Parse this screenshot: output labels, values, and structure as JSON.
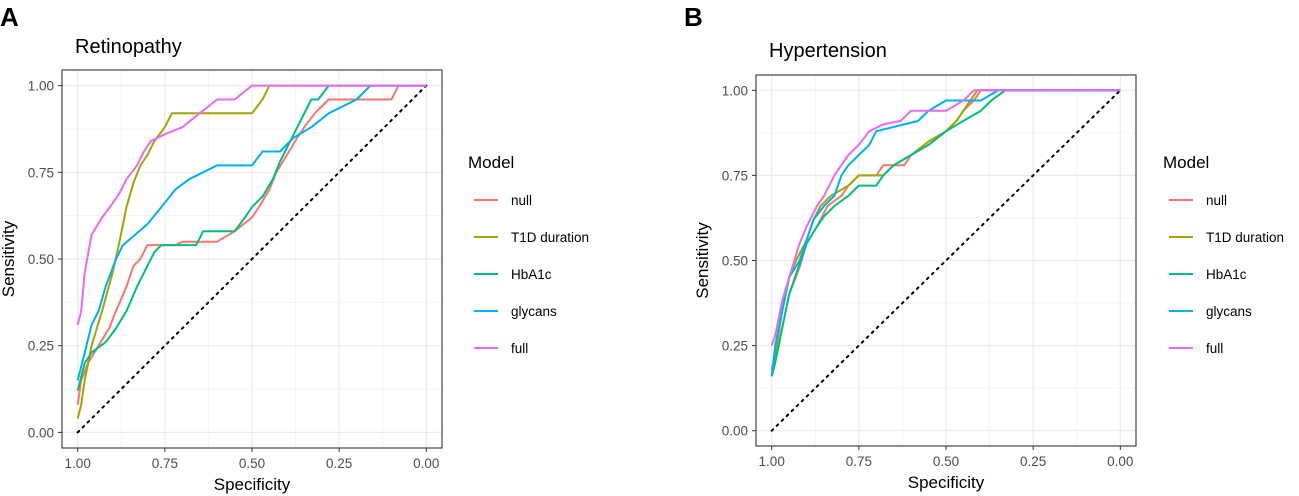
{
  "figure": {
    "panels": [
      {
        "label": "A",
        "title": "Retinopathy"
      },
      {
        "label": "B",
        "title": "Hypertension"
      }
    ]
  },
  "chart_data": [
    {
      "type": "line",
      "panel": "A",
      "title": "Retinopathy",
      "xlabel": "Specificity",
      "ylabel": "Sensitivity",
      "xlim": [
        1.0,
        0.0
      ],
      "ylim": [
        0.0,
        1.0
      ],
      "x_reversed": true,
      "grid": true,
      "xticks": [
        1.0,
        0.75,
        0.5,
        0.25,
        0.0
      ],
      "xtick_labels": [
        "1.00",
        "0.75",
        "0.50",
        "0.25",
        "0.00"
      ],
      "yticks": [
        0.0,
        0.25,
        0.5,
        0.75,
        1.0
      ],
      "ytick_labels": [
        "0.00",
        "0.25",
        "0.50",
        "0.75",
        "1.00"
      ],
      "legend": {
        "title": "Model",
        "position": "right"
      },
      "reference_line": {
        "style": "dotted",
        "color": "#000000",
        "from": [
          1.0,
          0.0
        ],
        "to": [
          0.0,
          1.0
        ]
      },
      "series": [
        {
          "name": "null",
          "color": "#F8766D",
          "points": [
            [
              1.0,
              0.08
            ],
            [
              0.99,
              0.15
            ],
            [
              0.97,
              0.2
            ],
            [
              0.94,
              0.25
            ],
            [
              0.91,
              0.3
            ],
            [
              0.89,
              0.35
            ],
            [
              0.86,
              0.42
            ],
            [
              0.84,
              0.48
            ],
            [
              0.82,
              0.5
            ],
            [
              0.8,
              0.54
            ],
            [
              0.72,
              0.54
            ],
            [
              0.7,
              0.55
            ],
            [
              0.6,
              0.55
            ],
            [
              0.55,
              0.58
            ],
            [
              0.5,
              0.62
            ],
            [
              0.48,
              0.65
            ],
            [
              0.45,
              0.7
            ],
            [
              0.43,
              0.75
            ],
            [
              0.4,
              0.8
            ],
            [
              0.37,
              0.85
            ],
            [
              0.35,
              0.88
            ],
            [
              0.32,
              0.92
            ],
            [
              0.28,
              0.96
            ],
            [
              0.1,
              0.96
            ],
            [
              0.08,
              1.0
            ],
            [
              0.0,
              1.0
            ]
          ]
        },
        {
          "name": "T1D duration",
          "color": "#A3A500",
          "points": [
            [
              1.0,
              0.04
            ],
            [
              0.99,
              0.08
            ],
            [
              0.98,
              0.15
            ],
            [
              0.96,
              0.25
            ],
            [
              0.93,
              0.35
            ],
            [
              0.9,
              0.46
            ],
            [
              0.88,
              0.55
            ],
            [
              0.86,
              0.65
            ],
            [
              0.84,
              0.72
            ],
            [
              0.82,
              0.77
            ],
            [
              0.8,
              0.8
            ],
            [
              0.78,
              0.84
            ],
            [
              0.75,
              0.88
            ],
            [
              0.73,
              0.92
            ],
            [
              0.62,
              0.92
            ],
            [
              0.6,
              0.92
            ],
            [
              0.5,
              0.92
            ],
            [
              0.47,
              0.96
            ],
            [
              0.45,
              1.0
            ],
            [
              0.0,
              1.0
            ]
          ]
        },
        {
          "name": "HbA1c",
          "color": "#00BF7D",
          "points": [
            [
              1.0,
              0.12
            ],
            [
              0.98,
              0.2
            ],
            [
              0.96,
              0.23
            ],
            [
              0.92,
              0.26
            ],
            [
              0.89,
              0.3
            ],
            [
              0.86,
              0.35
            ],
            [
              0.83,
              0.42
            ],
            [
              0.8,
              0.48
            ],
            [
              0.78,
              0.52
            ],
            [
              0.76,
              0.54
            ],
            [
              0.66,
              0.54
            ],
            [
              0.64,
              0.58
            ],
            [
              0.55,
              0.58
            ],
            [
              0.52,
              0.62
            ],
            [
              0.5,
              0.65
            ],
            [
              0.47,
              0.68
            ],
            [
              0.44,
              0.73
            ],
            [
              0.42,
              0.78
            ],
            [
              0.39,
              0.84
            ],
            [
              0.37,
              0.88
            ],
            [
              0.35,
              0.92
            ],
            [
              0.33,
              0.96
            ],
            [
              0.31,
              0.96
            ],
            [
              0.28,
              1.0
            ],
            [
              0.0,
              1.0
            ]
          ]
        },
        {
          "name": "glycans",
          "color": "#00B0F6",
          "points": [
            [
              1.0,
              0.15
            ],
            [
              0.98,
              0.23
            ],
            [
              0.96,
              0.31
            ],
            [
              0.94,
              0.35
            ],
            [
              0.92,
              0.42
            ],
            [
              0.89,
              0.5
            ],
            [
              0.87,
              0.54
            ],
            [
              0.8,
              0.6
            ],
            [
              0.76,
              0.65
            ],
            [
              0.72,
              0.7
            ],
            [
              0.68,
              0.73
            ],
            [
              0.6,
              0.77
            ],
            [
              0.5,
              0.77
            ],
            [
              0.47,
              0.81
            ],
            [
              0.42,
              0.81
            ],
            [
              0.38,
              0.85
            ],
            [
              0.33,
              0.88
            ],
            [
              0.28,
              0.92
            ],
            [
              0.2,
              0.96
            ],
            [
              0.16,
              1.0
            ],
            [
              0.0,
              1.0
            ]
          ]
        },
        {
          "name": "full",
          "color": "#E76BF3",
          "points": [
            [
              1.0,
              0.31
            ],
            [
              0.99,
              0.35
            ],
            [
              0.98,
              0.46
            ],
            [
              0.96,
              0.57
            ],
            [
              0.93,
              0.62
            ],
            [
              0.9,
              0.66
            ],
            [
              0.88,
              0.69
            ],
            [
              0.86,
              0.73
            ],
            [
              0.83,
              0.77
            ],
            [
              0.81,
              0.81
            ],
            [
              0.79,
              0.84
            ],
            [
              0.75,
              0.86
            ],
            [
              0.7,
              0.88
            ],
            [
              0.65,
              0.92
            ],
            [
              0.6,
              0.96
            ],
            [
              0.55,
              0.96
            ],
            [
              0.5,
              1.0
            ],
            [
              0.0,
              1.0
            ]
          ]
        }
      ]
    },
    {
      "type": "line",
      "panel": "B",
      "title": "Hypertension",
      "xlabel": "Specificity",
      "ylabel": "Sensitivity",
      "xlim": [
        1.0,
        0.0
      ],
      "ylim": [
        0.0,
        1.0
      ],
      "x_reversed": true,
      "grid": true,
      "xticks": [
        1.0,
        0.75,
        0.5,
        0.25,
        0.0
      ],
      "xtick_labels": [
        "1.00",
        "0.75",
        "0.50",
        "0.25",
        "0.00"
      ],
      "yticks": [
        0.0,
        0.25,
        0.5,
        0.75,
        1.0
      ],
      "ytick_labels": [
        "0.00",
        "0.25",
        "0.50",
        "0.75",
        "1.00"
      ],
      "legend": {
        "title": "Model",
        "position": "right"
      },
      "reference_line": {
        "style": "dotted",
        "color": "#000000",
        "from": [
          1.0,
          0.0
        ],
        "to": [
          0.0,
          1.0
        ]
      },
      "series": [
        {
          "name": "null",
          "color": "#F8766D",
          "points": [
            [
              1.0,
              0.16
            ],
            [
              0.99,
              0.2
            ],
            [
              0.97,
              0.3
            ],
            [
              0.95,
              0.4
            ],
            [
              0.92,
              0.48
            ],
            [
              0.9,
              0.55
            ],
            [
              0.87,
              0.6
            ],
            [
              0.84,
              0.66
            ],
            [
              0.8,
              0.69
            ],
            [
              0.78,
              0.72
            ],
            [
              0.75,
              0.75
            ],
            [
              0.7,
              0.75
            ],
            [
              0.68,
              0.78
            ],
            [
              0.62,
              0.78
            ],
            [
              0.6,
              0.81
            ],
            [
              0.55,
              0.84
            ],
            [
              0.5,
              0.88
            ],
            [
              0.47,
              0.91
            ],
            [
              0.45,
              0.94
            ],
            [
              0.42,
              0.97
            ],
            [
              0.4,
              1.0
            ],
            [
              0.0,
              1.0
            ]
          ]
        },
        {
          "name": "T1D duration",
          "color": "#A3A500",
          "points": [
            [
              1.0,
              0.18
            ],
            [
              0.99,
              0.22
            ],
            [
              0.97,
              0.35
            ],
            [
              0.95,
              0.45
            ],
            [
              0.93,
              0.5
            ],
            [
              0.9,
              0.56
            ],
            [
              0.88,
              0.62
            ],
            [
              0.86,
              0.66
            ],
            [
              0.83,
              0.69
            ],
            [
              0.78,
              0.72
            ],
            [
              0.75,
              0.75
            ],
            [
              0.68,
              0.75
            ],
            [
              0.65,
              0.78
            ],
            [
              0.6,
              0.81
            ],
            [
              0.55,
              0.85
            ],
            [
              0.5,
              0.88
            ],
            [
              0.47,
              0.91
            ],
            [
              0.45,
              0.94
            ],
            [
              0.43,
              0.97
            ],
            [
              0.41,
              1.0
            ],
            [
              0.0,
              1.0
            ]
          ]
        },
        {
          "name": "HbA1c",
          "color": "#00BF7D",
          "points": [
            [
              1.0,
              0.16
            ],
            [
              0.99,
              0.2
            ],
            [
              0.97,
              0.3
            ],
            [
              0.95,
              0.4
            ],
            [
              0.93,
              0.46
            ],
            [
              0.9,
              0.55
            ],
            [
              0.87,
              0.6
            ],
            [
              0.85,
              0.63
            ],
            [
              0.82,
              0.66
            ],
            [
              0.78,
              0.69
            ],
            [
              0.75,
              0.72
            ],
            [
              0.7,
              0.72
            ],
            [
              0.68,
              0.75
            ],
            [
              0.65,
              0.78
            ],
            [
              0.6,
              0.81
            ],
            [
              0.55,
              0.84
            ],
            [
              0.5,
              0.88
            ],
            [
              0.45,
              0.91
            ],
            [
              0.4,
              0.94
            ],
            [
              0.37,
              0.97
            ],
            [
              0.33,
              1.0
            ],
            [
              0.0,
              1.0
            ]
          ]
        },
        {
          "name": "glycans",
          "color": "#00B0F6",
          "points": [
            [
              1.0,
              0.16
            ],
            [
              0.99,
              0.25
            ],
            [
              0.97,
              0.35
            ],
            [
              0.95,
              0.45
            ],
            [
              0.92,
              0.5
            ],
            [
              0.9,
              0.56
            ],
            [
              0.88,
              0.62
            ],
            [
              0.85,
              0.66
            ],
            [
              0.82,
              0.69
            ],
            [
              0.8,
              0.75
            ],
            [
              0.78,
              0.78
            ],
            [
              0.75,
              0.81
            ],
            [
              0.72,
              0.84
            ],
            [
              0.7,
              0.88
            ],
            [
              0.62,
              0.9
            ],
            [
              0.58,
              0.91
            ],
            [
              0.55,
              0.94
            ],
            [
              0.5,
              0.97
            ],
            [
              0.45,
              0.97
            ],
            [
              0.4,
              0.97
            ],
            [
              0.35,
              1.0
            ],
            [
              0.0,
              1.0
            ]
          ]
        },
        {
          "name": "full",
          "color": "#E76BF3",
          "points": [
            [
              1.0,
              0.25
            ],
            [
              0.99,
              0.28
            ],
            [
              0.97,
              0.38
            ],
            [
              0.95,
              0.45
            ],
            [
              0.92,
              0.55
            ],
            [
              0.9,
              0.6
            ],
            [
              0.87,
              0.66
            ],
            [
              0.85,
              0.69
            ],
            [
              0.82,
              0.75
            ],
            [
              0.8,
              0.78
            ],
            [
              0.78,
              0.81
            ],
            [
              0.75,
              0.84
            ],
            [
              0.72,
              0.88
            ],
            [
              0.68,
              0.9
            ],
            [
              0.63,
              0.91
            ],
            [
              0.6,
              0.94
            ],
            [
              0.5,
              0.94
            ],
            [
              0.45,
              0.97
            ],
            [
              0.42,
              1.0
            ],
            [
              0.0,
              1.0
            ]
          ]
        }
      ]
    }
  ]
}
